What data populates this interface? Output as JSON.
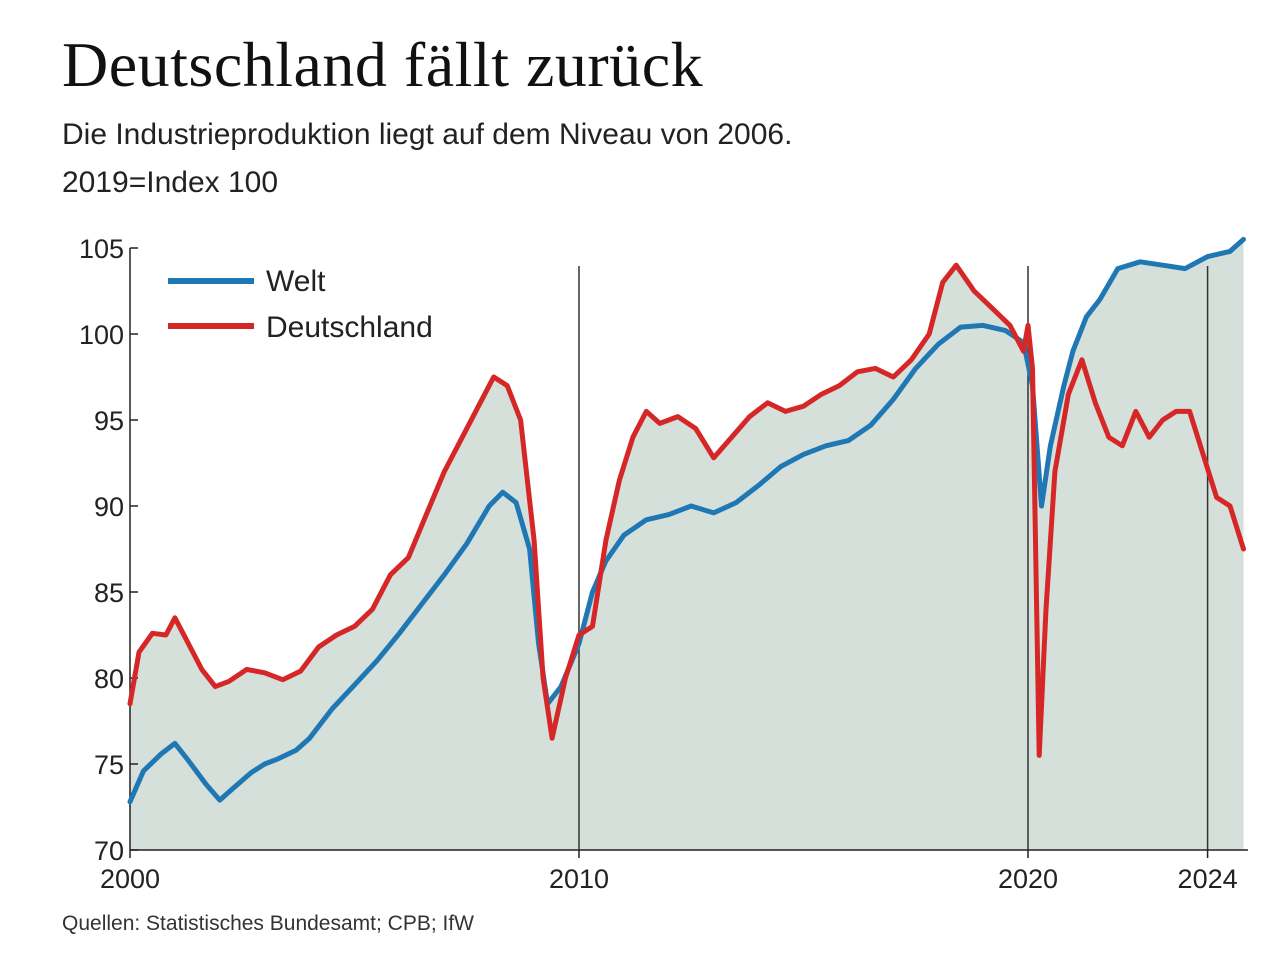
{
  "title": "Deutschland fällt zurück",
  "subtitle": "Die Industrieproduktion liegt auf dem Niveau von 2006.",
  "unit_note": "2019=Index 100",
  "source": "Quellen: Statistisches Bundesamt; CPB; IfW",
  "colors": {
    "welt": "#1f77b4",
    "deutschland": "#d62728",
    "fill": "#d5e0da"
  },
  "chart_data": {
    "type": "line",
    "ylim": [
      70,
      105
    ],
    "xlim": [
      2000,
      2024.9
    ],
    "yticks": [
      70,
      75,
      80,
      85,
      90,
      95,
      100,
      105
    ],
    "xticks": [
      2000,
      2010,
      2020,
      2024
    ],
    "reference_lines_x": [
      2010,
      2020,
      2024
    ],
    "legend": {
      "position": "top-left",
      "entries": [
        "Welt",
        "Deutschland"
      ]
    },
    "series": [
      {
        "name": "Welt",
        "x": [
          2000.0,
          2000.3,
          2000.7,
          2001.0,
          2001.3,
          2001.7,
          2002.0,
          2002.3,
          2002.7,
          2003.0,
          2003.3,
          2003.7,
          2004.0,
          2004.5,
          2005.0,
          2005.5,
          2006.0,
          2006.5,
          2007.0,
          2007.5,
          2008.0,
          2008.3,
          2008.6,
          2008.9,
          2009.1,
          2009.3,
          2009.6,
          2010.0,
          2010.3,
          2010.6,
          2011.0,
          2011.5,
          2012.0,
          2012.5,
          2013.0,
          2013.5,
          2014.0,
          2014.5,
          2015.0,
          2015.5,
          2016.0,
          2016.5,
          2017.0,
          2017.5,
          2018.0,
          2018.5,
          2019.0,
          2019.5,
          2019.9,
          2020.1,
          2020.3,
          2020.5,
          2020.8,
          2021.0,
          2021.3,
          2021.6,
          2022.0,
          2022.5,
          2023.0,
          2023.5,
          2024.0,
          2024.5,
          2024.8
        ],
        "values": [
          72.8,
          74.6,
          75.6,
          76.2,
          75.2,
          73.8,
          72.9,
          73.6,
          74.5,
          75.0,
          75.3,
          75.8,
          76.5,
          78.2,
          79.6,
          81.0,
          82.6,
          84.3,
          86.0,
          87.8,
          90.0,
          90.8,
          90.2,
          87.5,
          82.0,
          78.5,
          79.5,
          82.0,
          85.0,
          86.8,
          88.3,
          89.2,
          89.5,
          90.0,
          89.6,
          90.2,
          91.2,
          92.3,
          93.0,
          93.5,
          93.8,
          94.7,
          96.2,
          98.0,
          99.4,
          100.4,
          100.5,
          100.2,
          99.5,
          97.0,
          90.0,
          93.5,
          97.0,
          99.0,
          101.0,
          102.0,
          103.8,
          104.2,
          104.0,
          103.8,
          104.5,
          104.8,
          105.5
        ]
      },
      {
        "name": "Deutschland",
        "x": [
          2000.0,
          2000.2,
          2000.5,
          2000.8,
          2001.0,
          2001.3,
          2001.6,
          2001.9,
          2002.2,
          2002.6,
          2003.0,
          2003.4,
          2003.8,
          2004.2,
          2004.6,
          2005.0,
          2005.4,
          2005.8,
          2006.2,
          2006.6,
          2007.0,
          2007.4,
          2007.8,
          2008.1,
          2008.4,
          2008.7,
          2009.0,
          2009.2,
          2009.4,
          2009.7,
          2010.0,
          2010.3,
          2010.6,
          2010.9,
          2011.2,
          2011.5,
          2011.8,
          2012.2,
          2012.6,
          2013.0,
          2013.4,
          2013.8,
          2014.2,
          2014.6,
          2015.0,
          2015.4,
          2015.8,
          2016.2,
          2016.6,
          2017.0,
          2017.4,
          2017.8,
          2018.1,
          2018.4,
          2018.8,
          2019.2,
          2019.6,
          2019.9,
          2020.0,
          2020.1,
          2020.25,
          2020.4,
          2020.6,
          2020.9,
          2021.2,
          2021.5,
          2021.8,
          2022.1,
          2022.4,
          2022.7,
          2023.0,
          2023.3,
          2023.6,
          2023.9,
          2024.2,
          2024.5,
          2024.8
        ],
        "values": [
          78.5,
          81.5,
          82.6,
          82.5,
          83.5,
          82.0,
          80.5,
          79.5,
          79.8,
          80.5,
          80.3,
          79.9,
          80.4,
          81.8,
          82.5,
          83.0,
          84.0,
          86.0,
          87.0,
          89.5,
          92.0,
          94.0,
          96.0,
          97.5,
          97.0,
          95.0,
          88.0,
          80.0,
          76.5,
          80.0,
          82.5,
          83.0,
          88.0,
          91.5,
          94.0,
          95.5,
          94.8,
          95.2,
          94.5,
          92.8,
          94.0,
          95.2,
          96.0,
          95.5,
          95.8,
          96.5,
          97.0,
          97.8,
          98.0,
          97.5,
          98.5,
          100.0,
          103.0,
          104.0,
          102.5,
          101.5,
          100.5,
          99.0,
          100.5,
          98.0,
          75.5,
          84.0,
          92.0,
          96.5,
          98.5,
          96.0,
          94.0,
          93.5,
          95.5,
          94.0,
          95.0,
          95.5,
          95.5,
          93.0,
          90.5,
          90.0,
          87.5
        ]
      }
    ]
  }
}
